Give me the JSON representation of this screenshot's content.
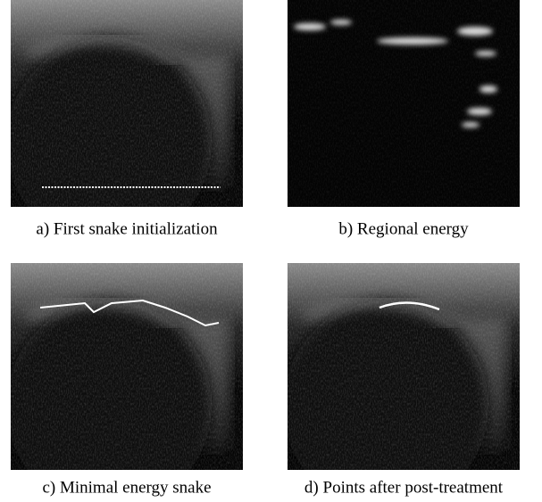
{
  "figure": {
    "panels": [
      {
        "caption": "a) First snake initialization"
      },
      {
        "caption": "b) Regional energy"
      },
      {
        "caption": "c) Minimal energy snake"
      },
      {
        "caption": "d) Points after post-treatment"
      }
    ]
  }
}
